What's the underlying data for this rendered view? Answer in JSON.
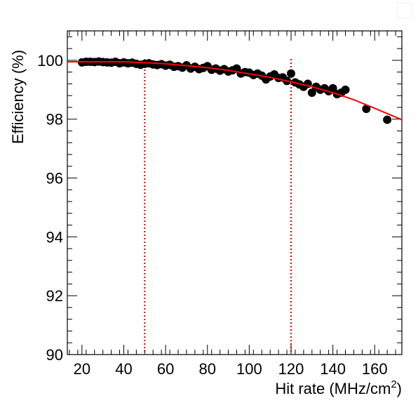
{
  "chart_data": {
    "type": "scatter",
    "title": "",
    "xlabel": "Hit rate (MHz/cm",
    "xlabel_sup": "2",
    "xlabel_close": ")",
    "ylabel": "Efficiency (%)",
    "xlim": [
      13,
      173
    ],
    "ylim": [
      90,
      101
    ],
    "xticks": [
      20,
      40,
      60,
      80,
      100,
      120,
      140,
      160
    ],
    "yticks": [
      90,
      92,
      94,
      96,
      98,
      100
    ],
    "xtick_labels": [
      "20",
      "40",
      "60",
      "80",
      "100",
      "120",
      "140",
      "160"
    ],
    "ytick_labels": [
      "90",
      "92",
      "94",
      "96",
      "98",
      "100"
    ],
    "grid": false,
    "series": [
      {
        "marker_color": "#000000",
        "x": [
          20,
          22,
          24,
          26,
          28,
          30,
          32,
          34,
          36,
          38,
          40,
          42,
          44,
          46,
          48,
          50,
          52,
          54,
          56,
          58,
          60,
          62,
          64,
          66,
          68,
          70,
          72,
          74,
          76,
          78,
          80,
          82,
          84,
          86,
          88,
          90,
          92,
          94,
          96,
          98,
          100,
          102,
          104,
          106,
          108,
          110,
          112,
          114,
          116,
          118,
          120,
          122,
          124,
          126,
          128,
          130,
          132,
          134,
          136,
          138,
          140,
          142,
          144,
          146,
          156,
          166
        ],
        "y": [
          99.93,
          99.95,
          99.95,
          99.94,
          99.96,
          99.94,
          99.93,
          99.92,
          99.95,
          99.9,
          99.93,
          99.9,
          99.92,
          99.88,
          99.85,
          99.88,
          99.9,
          99.86,
          99.84,
          99.87,
          99.82,
          99.85,
          99.78,
          99.8,
          99.75,
          99.83,
          99.72,
          99.78,
          99.7,
          99.74,
          99.8,
          99.68,
          99.72,
          99.65,
          99.7,
          99.62,
          99.66,
          99.72,
          99.55,
          99.6,
          99.58,
          99.5,
          99.55,
          99.48,
          99.35,
          99.45,
          99.52,
          99.4,
          99.42,
          99.3,
          99.55,
          99.25,
          99.18,
          99.1,
          99.2,
          98.9,
          99.1,
          99.0,
          99.05,
          98.95,
          99.05,
          98.85,
          98.9,
          99.0,
          98.35,
          97.98
        ]
      },
      {
        "line_color": "#ff0000",
        "x": [
          13,
          20,
          30,
          40,
          50,
          60,
          70,
          80,
          90,
          100,
          110,
          120,
          130,
          140,
          150,
          160,
          173
        ],
        "y": [
          99.95,
          99.95,
          99.95,
          99.95,
          99.92,
          99.88,
          99.82,
          99.75,
          99.66,
          99.54,
          99.42,
          99.27,
          99.1,
          98.9,
          98.66,
          98.37,
          97.98
        ]
      }
    ],
    "reference_lines": [
      {
        "orientation": "vertical",
        "x": 50,
        "color": "#dd0000",
        "style": "dotted"
      },
      {
        "orientation": "vertical",
        "x": 120,
        "color": "#dd0000",
        "style": "dotted"
      }
    ]
  }
}
